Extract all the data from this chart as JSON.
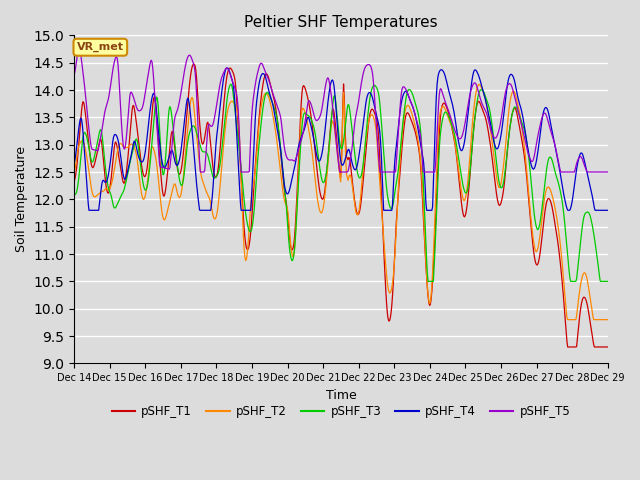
{
  "title": "Peltier SHF Temperatures",
  "xlabel": "Time",
  "ylabel": "Soil Temperature",
  "ylim": [
    9.0,
    15.0
  ],
  "yticks": [
    9.0,
    9.5,
    10.0,
    10.5,
    11.0,
    11.5,
    12.0,
    12.5,
    13.0,
    13.5,
    14.0,
    14.5,
    15.0
  ],
  "bg_color": "#dcdcdc",
  "line_colors": {
    "pSHF_T1": "#cc0000",
    "pSHF_T2": "#ff8800",
    "pSHF_T3": "#00cc00",
    "pSHF_T4": "#0000cc",
    "pSHF_T5": "#9900cc"
  },
  "annotation_text": "VR_met",
  "annotation_fg": "#8b4513",
  "annotation_bg": "#ffffa0",
  "annotation_edge": "#cc8800",
  "x_dates": [
    "Dec 14",
    "Dec 15",
    "Dec 16",
    "Dec 17",
    "Dec 18",
    "Dec 19",
    "Dec 20",
    "Dec 21",
    "Dec 22",
    "Dec 23",
    "Dec 24",
    "Dec 25",
    "Dec 26",
    "Dec 27",
    "Dec 28",
    "Dec 29"
  ]
}
